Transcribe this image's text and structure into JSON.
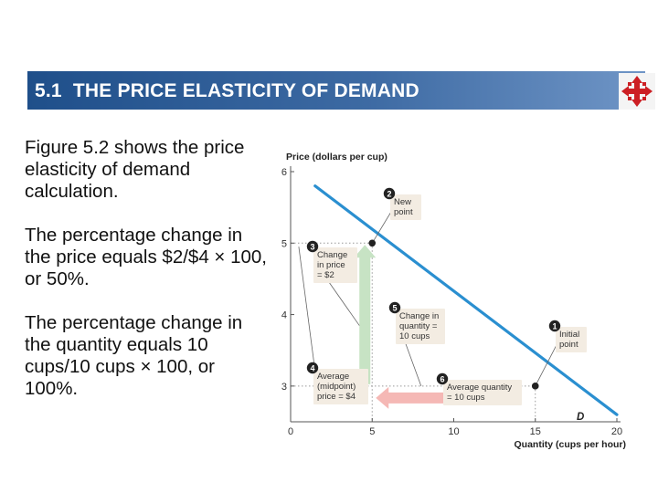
{
  "header": {
    "title": "5.1  THE PRICE ELASTICITY OF DEMAND"
  },
  "logo": {
    "icon": "compass-arrows-icon",
    "color": "#cc1f24"
  },
  "body_text": [
    "Figure  5.2  shows the price elasticity of demand calculation.",
    "The percentage change in the price equals $2/$4 × 100, or  50%.",
    "The percentage change in the quantity equals 10 cups/10 cups × 100, or 100%."
  ],
  "chart_data": {
    "type": "line",
    "ylabel": "Price (dollars per cup)",
    "xlabel": "Quantity (cups per hour)",
    "xlim": [
      0,
      20
    ],
    "ylim": [
      2.5,
      6
    ],
    "x_ticks": [
      0,
      5,
      10,
      15,
      20
    ],
    "y_ticks": [
      3,
      4,
      5,
      6
    ],
    "series": [
      {
        "name": "D",
        "x": [
          1.5,
          20
        ],
        "y": [
          5.8,
          2.6
        ],
        "color": "#2a8fd0"
      }
    ],
    "points": [
      {
        "label": "New point",
        "x": 5,
        "y": 5
      },
      {
        "label": "Initial point",
        "x": 15,
        "y": 3
      }
    ],
    "annotations": [
      {
        "number": "1",
        "text": [
          "Initial",
          "point"
        ]
      },
      {
        "number": "2",
        "text": [
          "New",
          "point"
        ]
      },
      {
        "number": "3",
        "text": [
          "Change",
          "in price",
          "= $2"
        ]
      },
      {
        "number": "4",
        "text": [
          "Average",
          "(midpoint)",
          "price = $4"
        ]
      },
      {
        "number": "5",
        "text": [
          "Change in",
          "quantity =",
          "10 cups"
        ]
      },
      {
        "number": "6",
        "text": [
          "Average quantity",
          "= 10 cups"
        ]
      }
    ],
    "arrows": [
      {
        "name": "price-change-arrow",
        "direction": "up",
        "x": 5,
        "from": 3,
        "to": 5,
        "color": "#c7e3c4"
      },
      {
        "name": "quantity-change-arrow",
        "direction": "left",
        "y": 3,
        "from": 15,
        "to": 5,
        "color": "#f5b8b5"
      }
    ],
    "accent_colors": {
      "annotation_box": "#f3ece2",
      "badge": "#222222"
    }
  }
}
